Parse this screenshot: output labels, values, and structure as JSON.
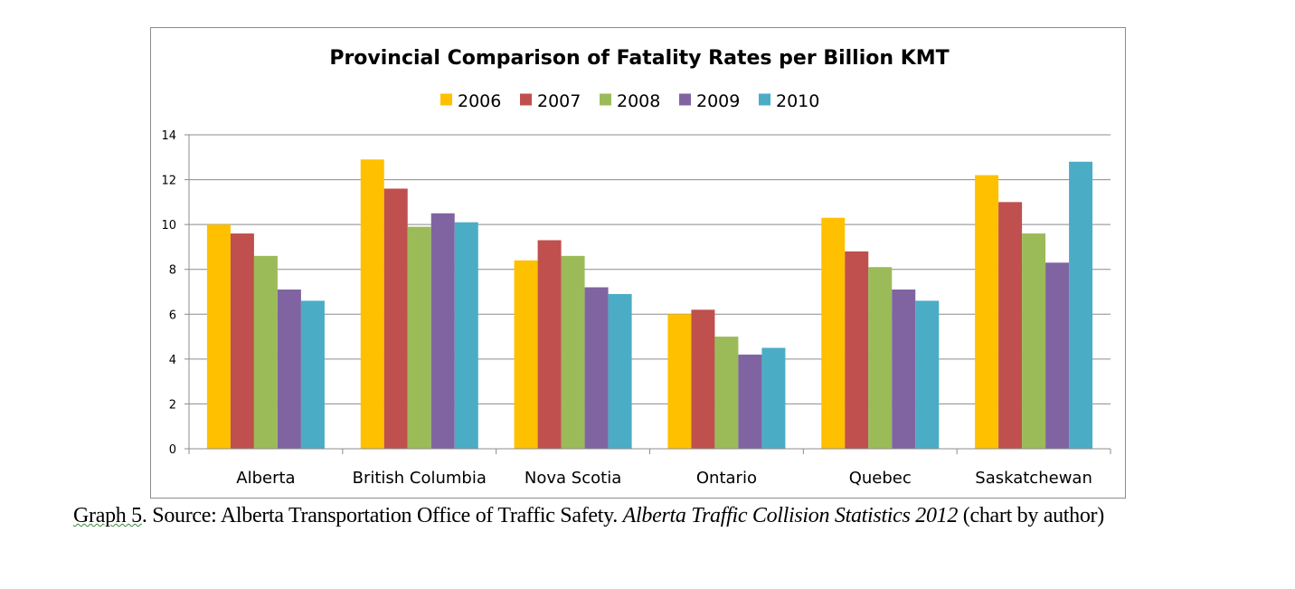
{
  "chart_data": {
    "type": "bar",
    "title": "Provincial Comparison of Fatality Rates per Billion KMT",
    "categories": [
      "Alberta",
      "British Columbia",
      "Nova Scotia",
      "Ontario",
      "Quebec",
      "Saskatchewan"
    ],
    "series": [
      {
        "name": "2006",
        "color": "#ffc000",
        "values": [
          10.0,
          12.9,
          8.4,
          6.0,
          10.3,
          12.2
        ]
      },
      {
        "name": "2007",
        "color": "#c0504d",
        "values": [
          9.6,
          11.6,
          9.3,
          6.2,
          8.8,
          11.0
        ]
      },
      {
        "name": "2008",
        "color": "#9bbb59",
        "values": [
          8.6,
          9.9,
          8.6,
          5.0,
          8.1,
          9.6
        ]
      },
      {
        "name": "2009",
        "color": "#8064a2",
        "values": [
          7.1,
          10.5,
          7.2,
          4.2,
          7.1,
          8.3
        ]
      },
      {
        "name": "2010",
        "color": "#4bacc6",
        "values": [
          6.6,
          10.1,
          6.9,
          4.5,
          6.6,
          12.8
        ]
      }
    ],
    "ylim": [
      0,
      14
    ],
    "yticks": [
      0,
      2,
      4,
      6,
      8,
      10,
      12,
      14
    ],
    "grid": true,
    "legend": "top"
  },
  "caption": {
    "label": "Graph 5",
    "text_main": ". Source: Alberta Transportation Office of Traffic Safety. ",
    "text_italic": "Alberta Traffic Collision Statistics 2012",
    "text_end": " (chart by author)"
  }
}
